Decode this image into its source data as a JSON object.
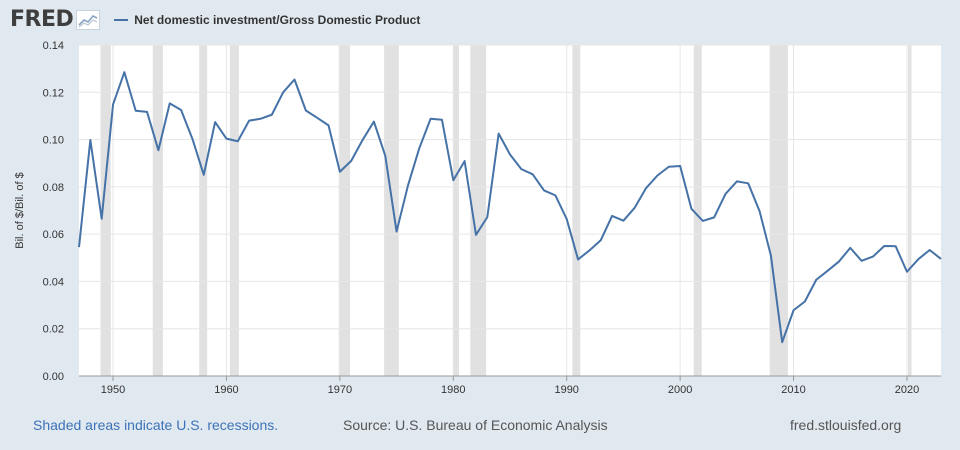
{
  "header": {
    "logo_text": "FRED",
    "logo_icon": "line-graph-icon",
    "legend_label": "Net domestic investment/Gross Domestic Product"
  },
  "footer": {
    "recessions_note": "Shaded areas indicate U.S. recessions.",
    "source": "Source: U.S. Bureau of Economic Analysis",
    "site": "fred.stlouisfed.org"
  },
  "colors": {
    "background": "#e1e9f0",
    "plot_background": "#ffffff",
    "line": "#4572a7",
    "recession_shade": "#e1e1e1",
    "link": "#3d72b8"
  },
  "chart_data": {
    "type": "line",
    "title": "",
    "xlabel": "",
    "ylabel": "Bil. of $/Bil. of $",
    "xlim": [
      1947,
      2023
    ],
    "ylim": [
      0,
      0.14
    ],
    "grid": true,
    "legend_position": "top-left",
    "x_ticks": [
      1950,
      1960,
      1970,
      1980,
      1990,
      2000,
      2010,
      2020
    ],
    "y_ticks": [
      "0.00",
      "0.02",
      "0.04",
      "0.06",
      "0.08",
      "0.10",
      "0.12",
      "0.14"
    ],
    "recessions": [
      [
        1948.9,
        1949.8
      ],
      [
        1953.5,
        1954.4
      ],
      [
        1957.6,
        1958.3
      ],
      [
        1960.3,
        1961.1
      ],
      [
        1969.9,
        1970.9
      ],
      [
        1973.9,
        1975.2
      ],
      [
        1980.0,
        1980.5
      ],
      [
        1981.5,
        1982.9
      ],
      [
        1990.5,
        1991.2
      ],
      [
        2001.2,
        2001.9
      ],
      [
        2007.9,
        2009.5
      ],
      [
        2020.1,
        2020.4
      ]
    ],
    "series": [
      {
        "name": "Net domestic investment/Gross Domestic Product",
        "x": [
          1947,
          1948,
          1949,
          1950,
          1951,
          1952,
          1953,
          1954,
          1955,
          1956,
          1957,
          1958,
          1959,
          1960,
          1961,
          1962,
          1963,
          1964,
          1965,
          1966,
          1967,
          1968,
          1969,
          1970,
          1971,
          1972,
          1973,
          1974,
          1975,
          1976,
          1977,
          1978,
          1979,
          1980,
          1981,
          1982,
          1983,
          1984,
          1985,
          1986,
          1987,
          1988,
          1989,
          1990,
          1991,
          1992,
          1993,
          1994,
          1995,
          1996,
          1997,
          1998,
          1999,
          2000,
          2001,
          2002,
          2003,
          2004,
          2005,
          2006,
          2007,
          2008,
          2009,
          2010,
          2011,
          2012,
          2013,
          2014,
          2015,
          2016,
          2017,
          2018,
          2019,
          2020,
          2021,
          2022,
          2023
        ],
        "values": [
          0.0545,
          0.0998,
          0.0665,
          0.1148,
          0.1285,
          0.1122,
          0.1117,
          0.0955,
          0.1153,
          0.1125,
          0.1003,
          0.0851,
          0.1074,
          0.1004,
          0.0993,
          0.108,
          0.1088,
          0.1105,
          0.12,
          0.1254,
          0.1123,
          0.1092,
          0.106,
          0.0864,
          0.091,
          0.0998,
          0.1076,
          0.0932,
          0.0611,
          0.0805,
          0.0963,
          0.1088,
          0.1084,
          0.0828,
          0.0909,
          0.0597,
          0.0672,
          0.1025,
          0.0937,
          0.0875,
          0.0853,
          0.0785,
          0.0764,
          0.0664,
          0.0493,
          0.0531,
          0.0574,
          0.0677,
          0.0657,
          0.0712,
          0.0795,
          0.0848,
          0.0885,
          0.0888,
          0.0707,
          0.0656,
          0.0671,
          0.077,
          0.0823,
          0.0815,
          0.0698,
          0.051,
          0.0143,
          0.0278,
          0.0315,
          0.0407,
          0.0445,
          0.0484,
          0.0542,
          0.0487,
          0.0505,
          0.055,
          0.0549,
          0.0441,
          0.0494,
          0.0533,
          0.0495
        ]
      }
    ]
  }
}
